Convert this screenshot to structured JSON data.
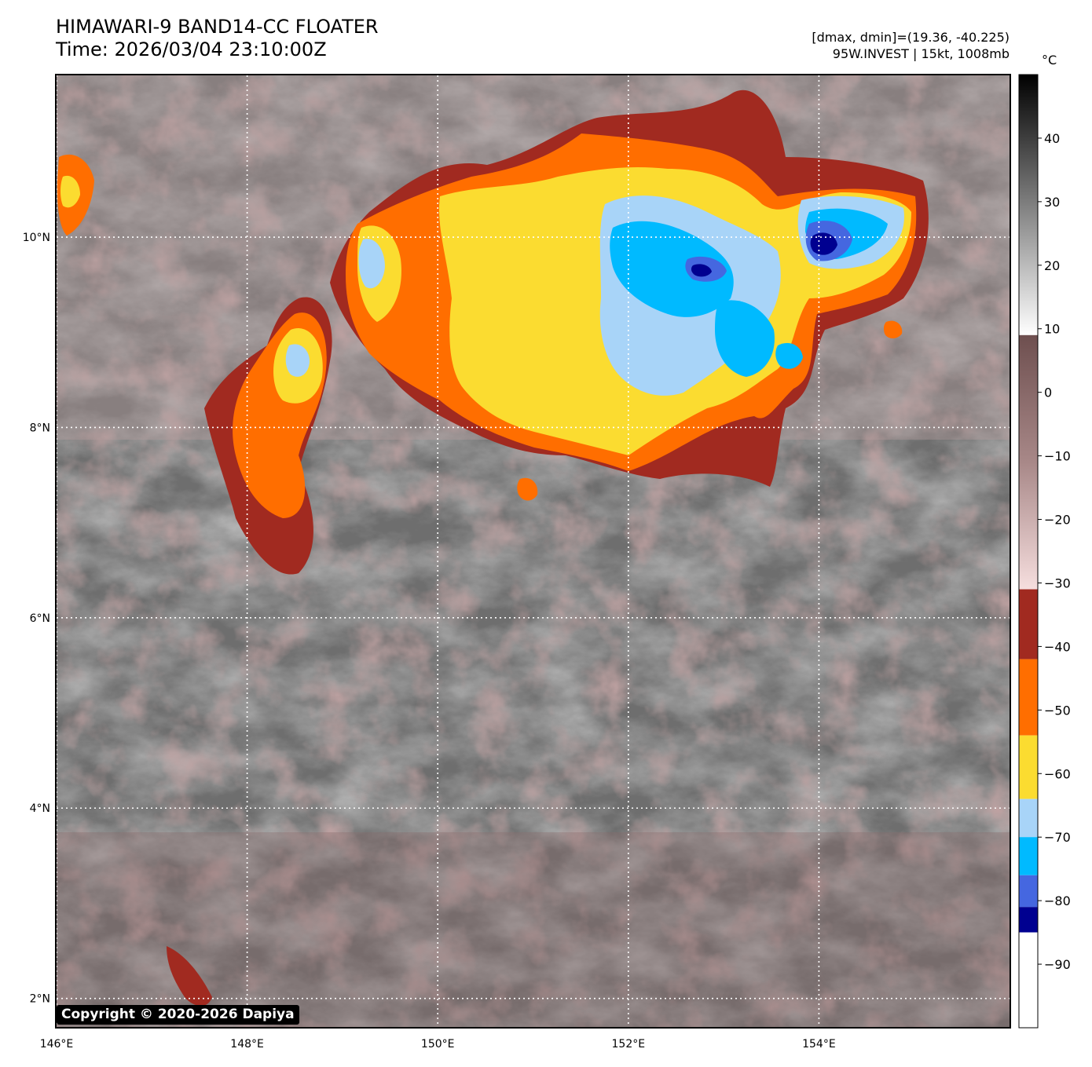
{
  "header": {
    "title_line1": "HIMAWARI-9 BAND14-CC FLOATER",
    "title_line2": "Time: 2026/03/04 23:10:00Z",
    "stats": "[dmax, dmin]=(19.36, -40.225)",
    "storm": "95W.INVEST | 15kt, 1008mb"
  },
  "colorbar": {
    "unit": "°C",
    "range": [
      -100,
      50
    ],
    "ticks": [
      40,
      30,
      20,
      10,
      0,
      -10,
      -20,
      -30,
      -40,
      -50,
      -60,
      -70,
      -80,
      -90
    ],
    "tick_labels": [
      "40",
      "30",
      "20",
      "10",
      "0",
      "−10",
      "−20",
      "−30",
      "−40",
      "−50",
      "−60",
      "−70",
      "−80",
      "−90"
    ],
    "segments": [
      {
        "from": 50,
        "to": 9,
        "style": "gray-ramp",
        "top_color": "#000000",
        "bottom_color": "#ffffff"
      },
      {
        "from": 9,
        "to": -31,
        "style": "brown-ramp",
        "top_color": "#6e4f4f",
        "bottom_color": "#f6dede"
      },
      {
        "from": -31,
        "to": -42,
        "color": "#a12a20"
      },
      {
        "from": -42,
        "to": -54,
        "color": "#ff6e00"
      },
      {
        "from": -54,
        "to": -64,
        "color": "#fbdc30"
      },
      {
        "from": -64,
        "to": -70,
        "color": "#a8d4f8"
      },
      {
        "from": -70,
        "to": -76,
        "color": "#00baff"
      },
      {
        "from": -76,
        "to": -81,
        "color": "#4567e0"
      },
      {
        "from": -81,
        "to": -85,
        "color": "#000090"
      },
      {
        "from": -85,
        "to": -100,
        "color": "#ffffff"
      }
    ]
  },
  "map": {
    "lon_range": [
      146,
      156
    ],
    "lat_range": [
      1.7,
      11.7
    ],
    "lon_ticks": [
      146,
      148,
      150,
      152,
      154
    ],
    "lon_labels": [
      "146°E",
      "148°E",
      "150°E",
      "152°E",
      "154°E"
    ],
    "lat_ticks": [
      10,
      8,
      6,
      4,
      2
    ],
    "lat_labels": [
      "10°N",
      "8°N",
      "6°N",
      "4°N",
      "2°N"
    ]
  },
  "copyright": "Copyright © 2020-2026 Dapiya"
}
